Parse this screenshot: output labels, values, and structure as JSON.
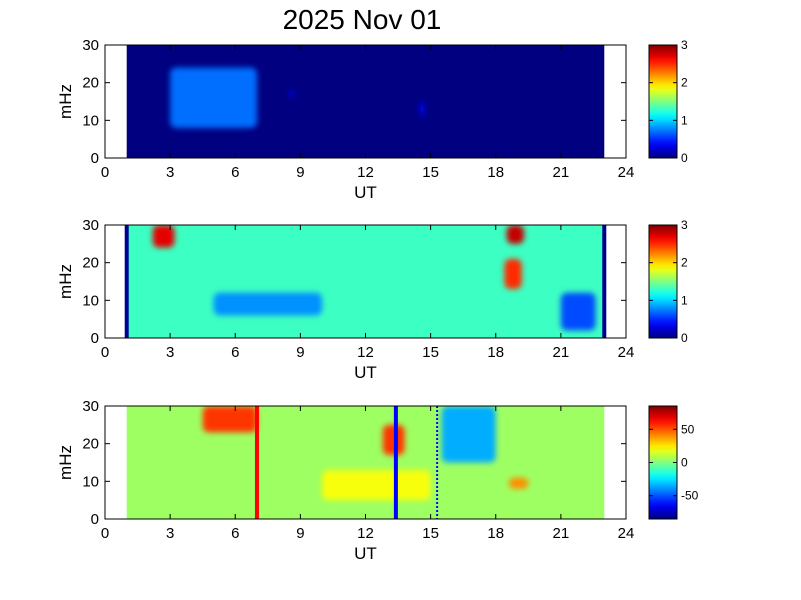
{
  "figure_title": "2025 Nov 01",
  "chart_data": [
    {
      "type": "heatmap",
      "xlabel": "UT",
      "ylabel": "mHz",
      "xlim": [
        0,
        24
      ],
      "ylim": [
        0,
        30
      ],
      "xticks": [
        "0",
        "3",
        "6",
        "9",
        "12",
        "15",
        "18",
        "21",
        "24"
      ],
      "yticks": [
        "0",
        "10",
        "20",
        "30"
      ],
      "data_range_ut": [
        1,
        23
      ],
      "colorbar": {
        "range": [
          0,
          3
        ],
        "ticks": [
          "0",
          "1",
          "2",
          "3"
        ]
      },
      "features": [
        {
          "ut": [
            3,
            7
          ],
          "mHz": [
            8,
            24
          ],
          "value": 0.7
        },
        {
          "ut": [
            8.5,
            8.7
          ],
          "mHz": [
            16,
            18
          ],
          "value": 0.4
        },
        {
          "ut": [
            14.5,
            14.7
          ],
          "mHz": [
            11,
            15
          ],
          "value": 0.4
        }
      ],
      "background_value": 0.0
    },
    {
      "type": "heatmap",
      "xlabel": "UT",
      "ylabel": "mHz",
      "xlim": [
        0,
        24
      ],
      "ylim": [
        0,
        30
      ],
      "xticks": [
        "0",
        "3",
        "6",
        "9",
        "12",
        "15",
        "18",
        "21",
        "24"
      ],
      "yticks": [
        "0",
        "10",
        "20",
        "30"
      ],
      "data_range_ut": [
        1,
        23
      ],
      "colorbar": {
        "range": [
          0,
          3
        ],
        "ticks": [
          "0",
          "1",
          "2",
          "3"
        ]
      },
      "features": [
        {
          "ut": [
            2.2,
            3.2
          ],
          "mHz": [
            24,
            30
          ],
          "value": 2.7
        },
        {
          "ut": [
            18.5,
            19.3
          ],
          "mHz": [
            25,
            30
          ],
          "value": 2.8
        },
        {
          "ut": [
            18.4,
            19.2
          ],
          "mHz": [
            13,
            21
          ],
          "value": 2.5
        },
        {
          "ut": [
            5,
            10
          ],
          "mHz": [
            6,
            12
          ],
          "value": 0.8
        },
        {
          "ut": [
            21,
            22.6
          ],
          "mHz": [
            2,
            12
          ],
          "value": 0.6
        }
      ],
      "background_value": 1.3
    },
    {
      "type": "heatmap",
      "xlabel": "UT",
      "ylabel": "mHz",
      "xlim": [
        0,
        24
      ],
      "ylim": [
        0,
        30
      ],
      "xticks": [
        "0",
        "3",
        "6",
        "9",
        "12",
        "15",
        "18",
        "21",
        "24"
      ],
      "yticks": [
        "0",
        "10",
        "20",
        "30"
      ],
      "data_range_ut": [
        1,
        23
      ],
      "colorbar": {
        "range": [
          -85,
          85
        ],
        "ticks": [
          "50",
          "0",
          "-50"
        ],
        "tick_values": [
          50,
          0,
          -50
        ]
      },
      "features": [
        {
          "ut": [
            4.5,
            7
          ],
          "mHz": [
            23,
            30
          ],
          "value": 55
        },
        {
          "ut": [
            12.8,
            13.8
          ],
          "mHz": [
            17,
            25
          ],
          "value": 55
        },
        {
          "ut": [
            18.6,
            19.5
          ],
          "mHz": [
            8,
            11
          ],
          "value": 40
        },
        {
          "ut": [
            15.5,
            18
          ],
          "mHz": [
            15,
            30
          ],
          "value": -35
        },
        {
          "ut": [
            10,
            15
          ],
          "mHz": [
            5,
            13
          ],
          "value": 20
        }
      ],
      "background_value": 5,
      "markers": [
        {
          "ut": 7.0,
          "color": "#ff0000",
          "style": "solid"
        },
        {
          "ut": 13.4,
          "color": "#0000ff",
          "style": "solid"
        },
        {
          "ut": 15.3,
          "color": "#0000ff",
          "style": "dotted"
        }
      ]
    }
  ]
}
